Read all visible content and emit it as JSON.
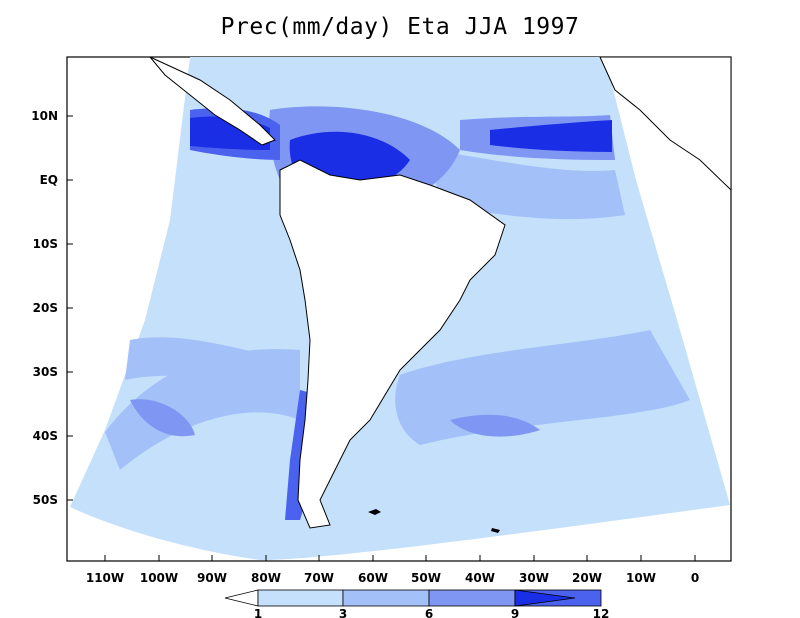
{
  "title": "Prec(mm/day) Eta JJA 1997",
  "colors": {
    "lt1": "#ffffff",
    "c1_3": "#c4e0fa",
    "c3_6": "#a4c0f8",
    "c6_9": "#7f96f2",
    "c9_12": "#4a62ee",
    "gt12": "#1a2ee6",
    "land_outline": "#000000"
  },
  "lat_ticks": [
    "10N",
    "EQ",
    "10S",
    "20S",
    "30S",
    "40S",
    "50S"
  ],
  "lon_ticks": [
    "110W",
    "100W",
    "90W",
    "80W",
    "70W",
    "60W",
    "50W",
    "40W",
    "30W",
    "20W",
    "10W",
    "0"
  ],
  "colorbar": {
    "levels": [
      "1",
      "3",
      "6",
      "9",
      "12"
    ]
  },
  "chart_data": {
    "type": "heatmap",
    "variable": "Prec(mm/day)",
    "x_axis": {
      "ticks": [
        "110W",
        "100W",
        "90W",
        "80W",
        "70W",
        "60W",
        "50W",
        "40W",
        "30W",
        "20W",
        "10W",
        "0"
      ],
      "range": [
        -117,
        5
      ]
    },
    "y_axis": {
      "ticks": [
        "10N",
        "EQ",
        "10S",
        "20S",
        "30S",
        "40S",
        "50S"
      ],
      "range": [
        -60,
        20
      ]
    },
    "contour_levels": [
      1,
      3,
      6,
      9,
      12
    ],
    "legend_placement": "bottom"
  }
}
